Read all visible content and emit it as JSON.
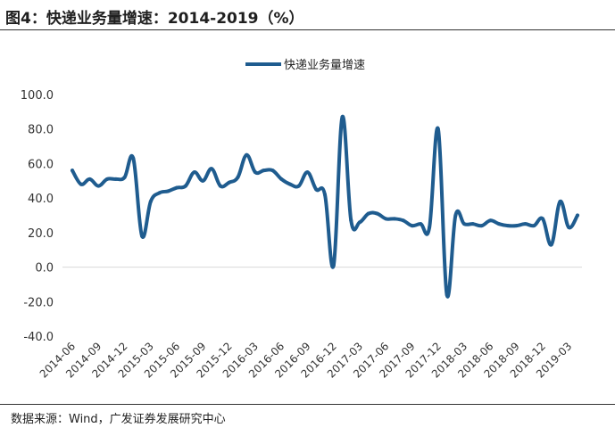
{
  "title": "图4：快递业务量增速：2014-2019（%）",
  "source": "数据来源：Wind，广发证券发展研究中心",
  "colors": {
    "line": "#1F5C8F",
    "grid": "#D9D9D9",
    "text": "#333333"
  },
  "chart_data": {
    "type": "line",
    "title": "",
    "xlabel": "",
    "ylabel": "",
    "ylim": [
      -40,
      100
    ],
    "yticks": [
      "100.0",
      "80.0",
      "60.0",
      "40.0",
      "20.0",
      "0.0",
      "-20.0",
      "-40.0"
    ],
    "grid": true,
    "legend_position": "top-center",
    "x_tick_labels": [
      "2014-06",
      "2014-09",
      "2014-12",
      "2015-03",
      "2015-06",
      "2015-09",
      "2015-12",
      "2016-03",
      "2016-06",
      "2016-09",
      "2016-12",
      "2017-03",
      "2017-06",
      "2017-09",
      "2017-12",
      "2018-03",
      "2018-06",
      "2018-09",
      "2018-12",
      "2019-03"
    ],
    "x": [
      "2014-06",
      "2014-07",
      "2014-08",
      "2014-09",
      "2014-10",
      "2014-11",
      "2014-12",
      "2015-01",
      "2015-02",
      "2015-03",
      "2015-04",
      "2015-05",
      "2015-06",
      "2015-07",
      "2015-08",
      "2015-09",
      "2015-10",
      "2015-11",
      "2015-12",
      "2016-01",
      "2016-02",
      "2016-03",
      "2016-04",
      "2016-05",
      "2016-06",
      "2016-07",
      "2016-08",
      "2016-09",
      "2016-10",
      "2016-11",
      "2016-12",
      "2017-01",
      "2017-02",
      "2017-03",
      "2017-04",
      "2017-05",
      "2017-06",
      "2017-07",
      "2017-08",
      "2017-09",
      "2017-10",
      "2017-11",
      "2017-12",
      "2018-01",
      "2018-02",
      "2018-03",
      "2018-04",
      "2018-05",
      "2018-06",
      "2018-07",
      "2018-08",
      "2018-09",
      "2018-10",
      "2018-11",
      "2018-12",
      "2019-01",
      "2019-02",
      "2019-03",
      "2019-04"
    ],
    "series": [
      {
        "name": "快递业务量增速",
        "values": [
          56,
          48,
          51,
          47,
          51,
          51,
          52,
          63,
          18,
          38,
          43,
          44,
          46,
          47,
          55,
          50,
          57,
          47,
          49,
          52,
          65,
          55,
          56,
          56,
          51,
          48,
          47,
          55,
          45,
          42,
          1,
          87,
          27,
          26,
          31,
          31,
          28,
          28,
          27,
          24,
          25,
          23,
          80,
          -16,
          30,
          25,
          25,
          24,
          27,
          25,
          24,
          24,
          25,
          24,
          28,
          13,
          38,
          23,
          30
        ]
      }
    ]
  }
}
